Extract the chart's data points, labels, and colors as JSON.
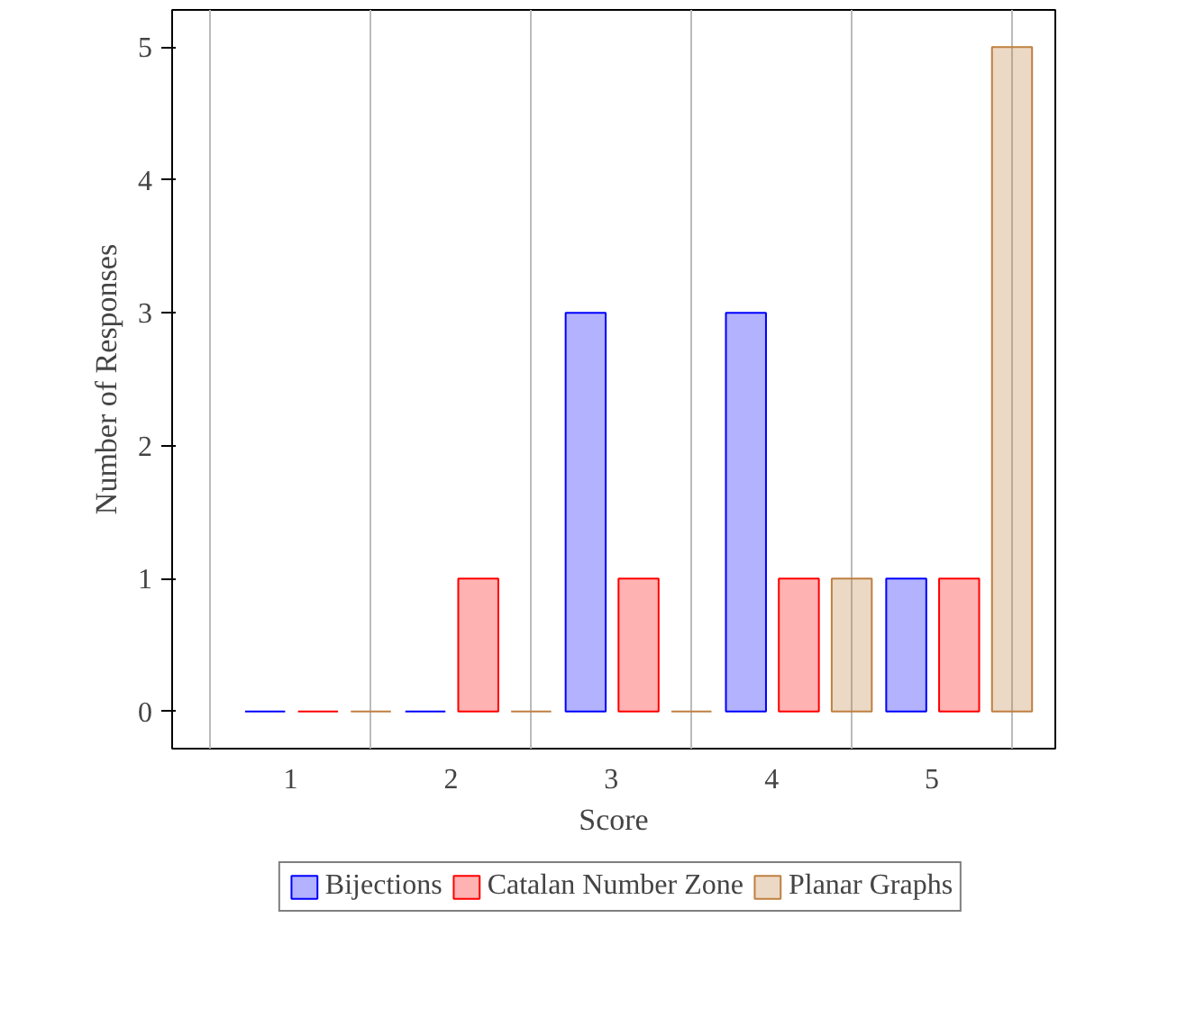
{
  "chart_data": {
    "type": "bar",
    "xlabel": "Score",
    "ylabel": "Number of Responses",
    "categories": [
      "1",
      "2",
      "3",
      "4",
      "5"
    ],
    "series": [
      {
        "name": "Bijections",
        "color": "#0000ff",
        "values": [
          0,
          0,
          3,
          3,
          1
        ]
      },
      {
        "name": "Catalan Number Zone",
        "color": "#ff0000",
        "values": [
          0,
          1,
          1,
          1,
          1
        ]
      },
      {
        "name": "Planar Graphs",
        "color": "#bf8040",
        "values": [
          0,
          0,
          0,
          1,
          5
        ]
      }
    ],
    "ylim": [
      -0.28,
      5.28
    ],
    "yticks": [
      0,
      1,
      2,
      3,
      4,
      5
    ],
    "grid": "x",
    "legend": "bottom"
  }
}
